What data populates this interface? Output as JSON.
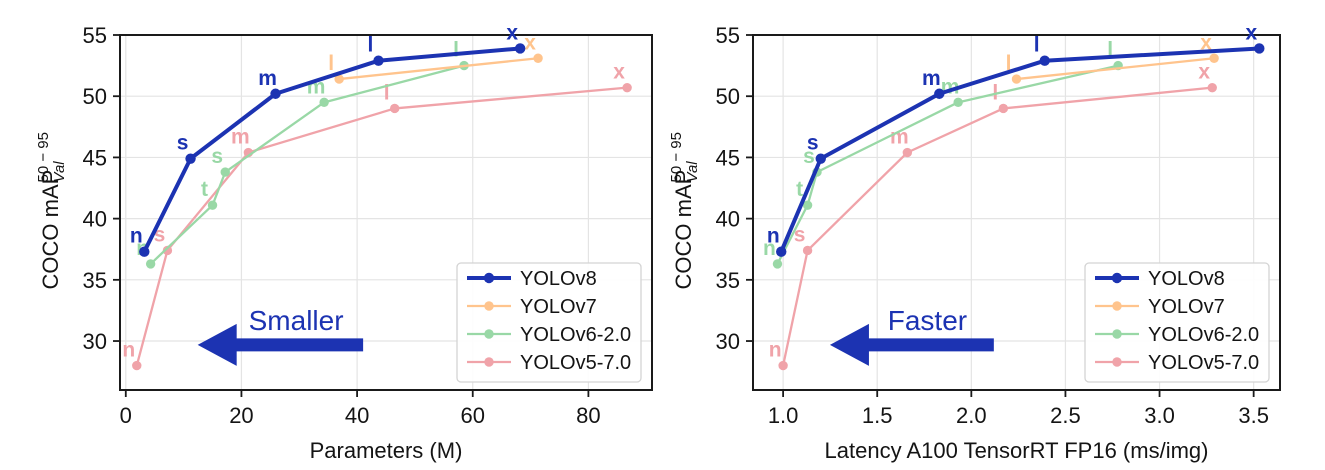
{
  "colors": {
    "background": "#ffffff",
    "grid": "#e4e4e4",
    "spine": "#1a1a1a",
    "tick_label": "#141414",
    "legend_border": "#d4d4d4",
    "legend_bg": "rgba(255,255,255,0.9)",
    "accent_blue": "#1c33b2"
  },
  "ylabel": {
    "prefix": "COCO mAP",
    "sup": "50 − 95",
    "sub": "Val"
  },
  "chart_data": [
    {
      "id": "params",
      "type": "line",
      "title": "",
      "xlabel": "Parameters (M)",
      "ylabel": "COCO mAP 50-95 (Val)",
      "xlim": [
        -1,
        91
      ],
      "ylim": [
        26,
        55
      ],
      "xticks": [
        0,
        20,
        40,
        60,
        80
      ],
      "xtick_labels": [
        "0",
        "20",
        "40",
        "60",
        "80"
      ],
      "yticks": [
        30,
        35,
        40,
        45,
        50,
        55
      ],
      "ytick_labels": [
        "30",
        "35",
        "40",
        "45",
        "50",
        "55"
      ],
      "grid": true,
      "legend_position": "lower-right",
      "annotation": {
        "text": "Smaller"
      },
      "series": [
        {
          "name": "YOLOv8",
          "color": "#1c33b2",
          "emphasis": true,
          "points": [
            {
              "label": "n",
              "x": 3.2,
              "y": 37.3
            },
            {
              "label": "s",
              "x": 11.2,
              "y": 44.9
            },
            {
              "label": "m",
              "x": 25.9,
              "y": 50.2
            },
            {
              "label": "l",
              "x": 43.7,
              "y": 52.9
            },
            {
              "label": "x",
              "x": 68.2,
              "y": 53.9
            }
          ]
        },
        {
          "name": "YOLOv7",
          "color": "#ffc48d",
          "emphasis": false,
          "points": [
            {
              "label": "l",
              "x": 36.9,
              "y": 51.4
            },
            {
              "label": "x",
              "x": 71.3,
              "y": 53.1
            }
          ]
        },
        {
          "name": "YOLOv6-2.0",
          "color": "#99d8a6",
          "emphasis": false,
          "points": [
            {
              "label": "n",
              "x": 4.3,
              "y": 36.3
            },
            {
              "label": "t",
              "x": 15.0,
              "y": 41.1
            },
            {
              "label": "s",
              "x": 17.2,
              "y": 43.8
            },
            {
              "label": "m",
              "x": 34.3,
              "y": 49.5
            },
            {
              "label": "l",
              "x": 58.5,
              "y": 52.5
            }
          ]
        },
        {
          "name": "YOLOv5-7.0",
          "color": "#f0a3a9",
          "emphasis": false,
          "points": [
            {
              "label": "n",
              "x": 1.9,
              "y": 28.0
            },
            {
              "label": "s",
              "x": 7.2,
              "y": 37.4
            },
            {
              "label": "m",
              "x": 21.2,
              "y": 45.4
            },
            {
              "label": "l",
              "x": 46.5,
              "y": 49.0
            },
            {
              "label": "x",
              "x": 86.7,
              "y": 50.7
            }
          ]
        }
      ]
    },
    {
      "id": "latency",
      "type": "line",
      "title": "",
      "xlabel": "Latency A100 TensorRT FP16 (ms/img)",
      "ylabel": "COCO mAP 50-95 (Val)",
      "xlim": [
        0.84,
        3.64
      ],
      "ylim": [
        26,
        55
      ],
      "xticks": [
        1.0,
        1.5,
        2.0,
        2.5,
        3.0,
        3.5
      ],
      "xtick_labels": [
        "1.0",
        "1.5",
        "2.0",
        "2.5",
        "3.0",
        "3.5"
      ],
      "yticks": [
        30,
        35,
        40,
        45,
        50,
        55
      ],
      "ytick_labels": [
        "30",
        "35",
        "40",
        "45",
        "50",
        "55"
      ],
      "grid": true,
      "legend_position": "lower-right",
      "annotation": {
        "text": "Faster"
      },
      "series": [
        {
          "name": "YOLOv8",
          "color": "#1c33b2",
          "emphasis": true,
          "points": [
            {
              "label": "n",
              "x": 0.99,
              "y": 37.3
            },
            {
              "label": "s",
              "x": 1.2,
              "y": 44.9
            },
            {
              "label": "m",
              "x": 1.83,
              "y": 50.2
            },
            {
              "label": "l",
              "x": 2.39,
              "y": 52.9
            },
            {
              "label": "x",
              "x": 3.53,
              "y": 53.9
            }
          ]
        },
        {
          "name": "YOLOv7",
          "color": "#ffc48d",
          "emphasis": false,
          "points": [
            {
              "label": "l",
              "x": 2.24,
              "y": 51.4
            },
            {
              "label": "x",
              "x": 3.29,
              "y": 53.1
            }
          ]
        },
        {
          "name": "YOLOv6-2.0",
          "color": "#99d8a6",
          "emphasis": false,
          "points": [
            {
              "label": "n",
              "x": 0.97,
              "y": 36.3
            },
            {
              "label": "t",
              "x": 1.13,
              "y": 41.1
            },
            {
              "label": "s",
              "x": 1.18,
              "y": 43.8
            },
            {
              "label": "m",
              "x": 1.93,
              "y": 49.5
            },
            {
              "label": "l",
              "x": 2.78,
              "y": 52.5
            }
          ]
        },
        {
          "name": "YOLOv5-7.0",
          "color": "#f0a3a9",
          "emphasis": false,
          "points": [
            {
              "label": "n",
              "x": 1.0,
              "y": 28.0
            },
            {
              "label": "s",
              "x": 1.13,
              "y": 37.4
            },
            {
              "label": "m",
              "x": 1.66,
              "y": 45.4
            },
            {
              "label": "l",
              "x": 2.17,
              "y": 49.0
            },
            {
              "label": "x",
              "x": 3.28,
              "y": 50.7
            }
          ]
        }
      ]
    }
  ]
}
